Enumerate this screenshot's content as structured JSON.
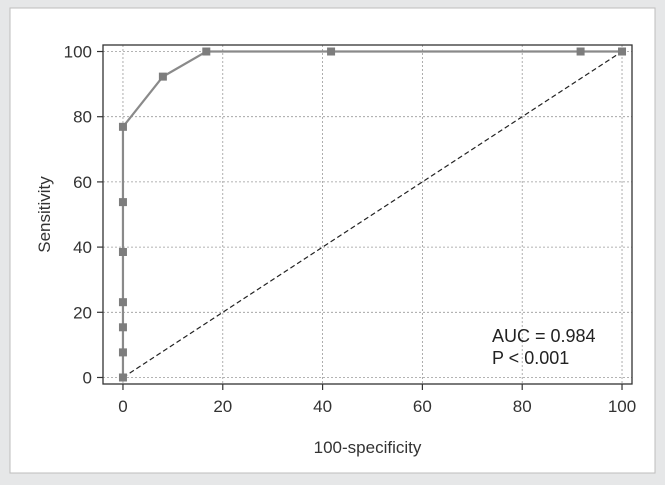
{
  "chart_data": {
    "type": "line",
    "title": "",
    "xlabel": "100-specificity",
    "ylabel": "Sensitivity",
    "xlim": [
      -4,
      102
    ],
    "ylim": [
      -2,
      102
    ],
    "xticks": [
      0,
      20,
      40,
      60,
      80,
      100
    ],
    "yticks": [
      0,
      20,
      40,
      60,
      80,
      100
    ],
    "grid": true,
    "series": [
      {
        "style": "solid-with-square-markers",
        "color": "#8a8a8a",
        "x": [
          0,
          0,
          0,
          0,
          0,
          0,
          0,
          8,
          16.7,
          41.7,
          91.7,
          100
        ],
        "y": [
          0,
          7.7,
          15.4,
          23.1,
          38.5,
          53.8,
          76.9,
          92.3,
          100,
          100,
          100,
          100
        ]
      },
      {
        "style": "dashed-reference-line",
        "color": "#222222",
        "x": [
          0,
          100
        ],
        "y": [
          0,
          100
        ]
      }
    ],
    "annotations": [
      "AUC = 0.984",
      "P < 0.001"
    ]
  }
}
